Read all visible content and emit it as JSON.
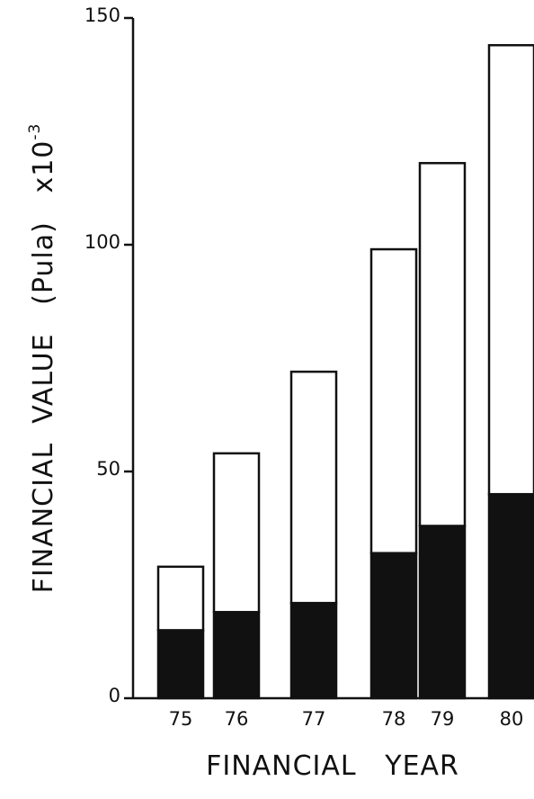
{
  "chart_data": {
    "type": "bar",
    "stacked": true,
    "categories": [
      "75",
      "76",
      "77",
      "78",
      "79",
      "80"
    ],
    "series": [
      {
        "fill": "#111111",
        "values": [
          15,
          19,
          21,
          32,
          38,
          45
        ]
      },
      {
        "fill": "#ffffff",
        "values": [
          14,
          35,
          51,
          67,
          80,
          99
        ]
      }
    ],
    "totals": [
      29,
      54,
      72,
      99,
      118,
      144
    ],
    "xlabel": "FINANCIAL   YEAR",
    "ylabel": "FINANCIAL  VALUE   (Pula)   x10",
    "ylabel_exponent": "-3",
    "yticks": [
      0,
      50,
      100,
      150
    ],
    "ylim": [
      0,
      150
    ],
    "grid": false,
    "legend": "none"
  }
}
